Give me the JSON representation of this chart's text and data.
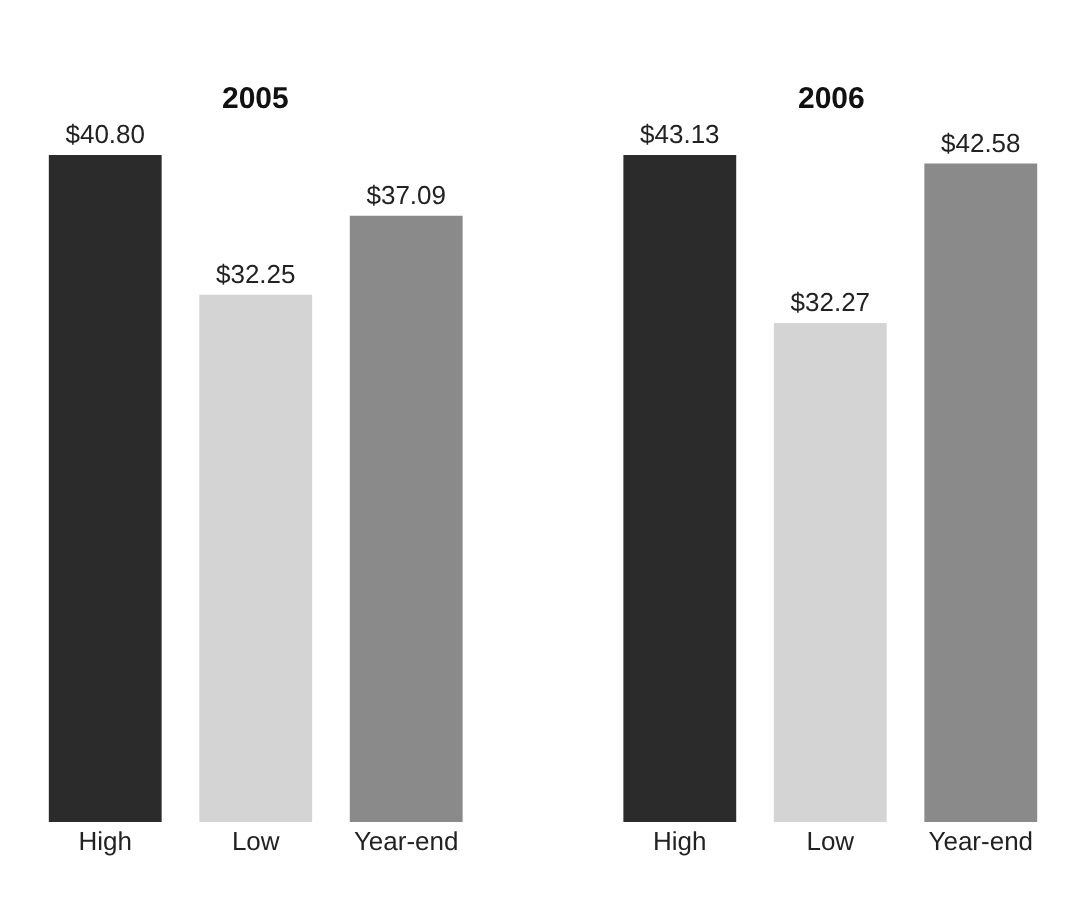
{
  "chart_data": [
    {
      "type": "bar",
      "title": "2005",
      "categories": [
        "High",
        "Low",
        "Year-end"
      ],
      "values": [
        40.8,
        32.25,
        37.09
      ],
      "colors": [
        "#2b2b2b",
        "#d4d4d4",
        "#8a8a8a"
      ],
      "value_labels": [
        "$40.80",
        "$32.25",
        "$37.09"
      ]
    },
    {
      "type": "bar",
      "title": "2006",
      "categories": [
        "High",
        "Low",
        "Year-end"
      ],
      "values": [
        43.13,
        32.27,
        42.58
      ],
      "colors": [
        "#2b2b2b",
        "#d4d4d4",
        "#8a8a8a"
      ],
      "value_labels": [
        "$43.13",
        "$32.27",
        "$42.58"
      ]
    }
  ]
}
